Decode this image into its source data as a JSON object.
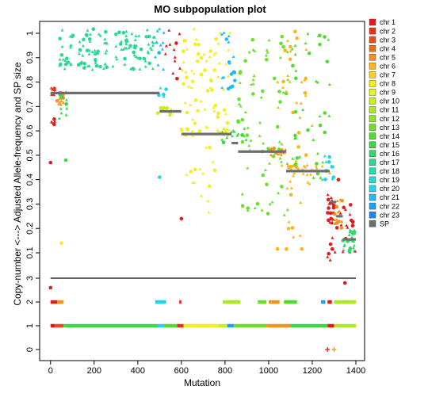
{
  "chart_data": {
    "type": "scatter",
    "title": "MO subpopulation plot",
    "xlabel": "Mutation",
    "ylabel": "Copy-number <---> Adjusted Allele-frequency and SP size",
    "xlim": [
      -50,
      1440
    ],
    "x_ticks": [
      0,
      200,
      400,
      600,
      800,
      1000,
      1200,
      1400
    ],
    "af_axis": {
      "data_range": [
        0,
        1
      ],
      "tick_labels": [
        "0.1",
        "0.2",
        "0.3",
        "0.4",
        "0.5",
        "0.6",
        "0.7",
        "0.8",
        "0.9",
        "1"
      ]
    },
    "cn_axis": {
      "tick_labels": [
        "0",
        "1",
        "2",
        "3"
      ]
    },
    "separator_line_copy_number": 3,
    "legend": {
      "placement": "right",
      "entries": [
        {
          "label": "chr 1",
          "color": "#e41a1c"
        },
        {
          "label": "chr 2",
          "color": "#e8311b"
        },
        {
          "label": "chr 3",
          "color": "#ec4a1a"
        },
        {
          "label": "chr 4",
          "color": "#f06d18"
        },
        {
          "label": "chr 5",
          "color": "#f59218"
        },
        {
          "label": "chr 6",
          "color": "#f9b51a"
        },
        {
          "label": "chr 7",
          "color": "#fcd21c"
        },
        {
          "label": "chr 8",
          "color": "#f5ee1e"
        },
        {
          "label": "chr 9",
          "color": "#e3f51f"
        },
        {
          "label": "chr 10",
          "color": "#c7f020"
        },
        {
          "label": "chr 11",
          "color": "#a9eb22"
        },
        {
          "label": "chr 12",
          "color": "#8ae625"
        },
        {
          "label": "chr 13",
          "color": "#6ae128"
        },
        {
          "label": "chr 14",
          "color": "#4fdc2c"
        },
        {
          "label": "chr 15",
          "color": "#3ad944"
        },
        {
          "label": "chr 16",
          "color": "#30d86c"
        },
        {
          "label": "chr 17",
          "color": "#2ad891"
        },
        {
          "label": "chr 18",
          "color": "#27d9b3"
        },
        {
          "label": "chr 19",
          "color": "#25dad2"
        },
        {
          "label": "chr 20",
          "color": "#21d4ee"
        },
        {
          "label": "chr 21",
          "color": "#1dbdf3"
        },
        {
          "label": "chr 22",
          "color": "#1aa3f5"
        },
        {
          "label": "chr 23",
          "color": "#1b86f0"
        },
        {
          "label": "SP",
          "color": "#6e6e6e"
        }
      ]
    },
    "sp_segments": [
      {
        "x0": 0,
        "x1": 500,
        "y": 0.755
      },
      {
        "x0": 500,
        "x1": 600,
        "y": 0.68
      },
      {
        "x0": 600,
        "x1": 830,
        "y": 0.587
      },
      {
        "x0": 830,
        "x1": 860,
        "y": 0.55
      },
      {
        "x0": 860,
        "x1": 1080,
        "y": 0.515
      },
      {
        "x0": 1080,
        "x1": 1280,
        "y": 0.435
      },
      {
        "x0": 1280,
        "x1": 1310,
        "y": 0.308
      },
      {
        "x0": 1310,
        "x1": 1340,
        "y": 0.25
      },
      {
        "x0": 1340,
        "x1": 1400,
        "y": 0.155
      }
    ],
    "cn_bands": [
      {
        "copy_number": 1,
        "segments": [
          {
            "x0": 0,
            "x1": 20,
            "color": "#e41a1c"
          },
          {
            "x0": 20,
            "x1": 60,
            "color": "#ec4a1a"
          },
          {
            "x0": 60,
            "x1": 490,
            "color": "#3ad944"
          },
          {
            "x0": 490,
            "x1": 520,
            "color": "#21d4ee"
          },
          {
            "x0": 520,
            "x1": 580,
            "color": "#4fdc2c"
          },
          {
            "x0": 580,
            "x1": 610,
            "color": "#e8311b"
          },
          {
            "x0": 610,
            "x1": 770,
            "color": "#f5ee1e"
          },
          {
            "x0": 770,
            "x1": 810,
            "color": "#c7f020"
          },
          {
            "x0": 810,
            "x1": 840,
            "color": "#1aa3f5"
          },
          {
            "x0": 840,
            "x1": 990,
            "color": "#6ae128"
          },
          {
            "x0": 990,
            "x1": 1100,
            "color": "#f59218"
          },
          {
            "x0": 1100,
            "x1": 1270,
            "color": "#3ad944"
          },
          {
            "x0": 1270,
            "x1": 1300,
            "color": "#e41a1c"
          },
          {
            "x0": 1300,
            "x1": 1400,
            "color": "#a9eb22"
          }
        ]
      },
      {
        "copy_number": 2,
        "segments": [
          {
            "x0": 0,
            "x1": 30,
            "color": "#e41a1c"
          },
          {
            "x0": 30,
            "x1": 60,
            "color": "#f59218"
          },
          {
            "x0": 480,
            "x1": 530,
            "color": "#21d4ee"
          },
          {
            "x0": 590,
            "x1": 600,
            "color": "#e8311b"
          },
          {
            "x0": 790,
            "x1": 870,
            "color": "#a9eb22"
          },
          {
            "x0": 950,
            "x1": 990,
            "color": "#6ae128"
          },
          {
            "x0": 1000,
            "x1": 1050,
            "color": "#f59218"
          },
          {
            "x0": 1070,
            "x1": 1130,
            "color": "#4fdc2c"
          },
          {
            "x0": 1240,
            "x1": 1260,
            "color": "#1aa3f5"
          },
          {
            "x0": 1270,
            "x1": 1290,
            "color": "#e41a1c"
          },
          {
            "x0": 1300,
            "x1": 1400,
            "color": "#a9eb22"
          }
        ]
      }
    ],
    "clusters": [
      {
        "x": [
          0,
          20
        ],
        "y": [
          0.74,
          0.78
        ],
        "n": 10,
        "color": "#e8311b"
      },
      {
        "x": [
          0,
          20
        ],
        "y": [
          0.62,
          0.66
        ],
        "n": 6,
        "color": "#e41a1c"
      },
      {
        "x": [
          30,
          60
        ],
        "y": [
          0.7,
          0.78
        ],
        "n": 14,
        "color": "#f59218"
      },
      {
        "x": [
          40,
          80
        ],
        "y": [
          0.6,
          0.76
        ],
        "n": 10,
        "color": "#3ad944"
      },
      {
        "x": [
          40,
          480
        ],
        "y": [
          0.85,
          1.02
        ],
        "n": 130,
        "color": "#2ad891"
      },
      {
        "x": [
          490,
          560
        ],
        "y": [
          0.66,
          0.7
        ],
        "n": 14,
        "color": "#c7f020"
      },
      {
        "x": [
          490,
          530
        ],
        "y": [
          0.74,
          0.78
        ],
        "n": 5,
        "color": "#21d4ee"
      },
      {
        "x": [
          480,
          520
        ],
        "y": [
          0.85,
          1.02
        ],
        "n": 12,
        "color": "#1dbdf3"
      },
      {
        "x": [
          520,
          600
        ],
        "y": [
          0.8,
          1.02
        ],
        "n": 12,
        "color": "#e41a1c"
      },
      {
        "x": [
          600,
          830
        ],
        "y": [
          0.58,
          0.61
        ],
        "n": 18,
        "color": "#e3f51f"
      },
      {
        "x": [
          600,
          830
        ],
        "y": [
          0.6,
          1.02
        ],
        "n": 70,
        "color": "#f5ee1e"
      },
      {
        "x": [
          600,
          760
        ],
        "y": [
          0.25,
          0.55
        ],
        "n": 15,
        "color": "#f5ee1e"
      },
      {
        "x": [
          780,
          900
        ],
        "y": [
          0.55,
          0.62
        ],
        "n": 14,
        "color": "#3ad944"
      },
      {
        "x": [
          780,
          850
        ],
        "y": [
          0.7,
          1.02
        ],
        "n": 20,
        "color": "#1dbdf3"
      },
      {
        "x": [
          860,
          1100
        ],
        "y": [
          0.25,
          1.0
        ],
        "n": 80,
        "color": "#6ae128"
      },
      {
        "x": [
          1000,
          1080
        ],
        "y": [
          0.5,
          0.53
        ],
        "n": 12,
        "color": "#f59218"
      },
      {
        "x": [
          1080,
          1280
        ],
        "y": [
          0.42,
          0.46
        ],
        "n": 20,
        "color": "#f9b51a"
      },
      {
        "x": [
          1040,
          1200
        ],
        "y": [
          0.1,
          1.02
        ],
        "n": 50,
        "color": "#f9b51a"
      },
      {
        "x": [
          1100,
          1280
        ],
        "y": [
          0.4,
          1.02
        ],
        "n": 40,
        "color": "#4fdc2c"
      },
      {
        "x": [
          1240,
          1300
        ],
        "y": [
          0.4,
          0.5
        ],
        "n": 14,
        "color": "#21d4ee"
      },
      {
        "x": [
          1270,
          1300
        ],
        "y": [
          0.22,
          0.34
        ],
        "n": 20,
        "color": "#e41a1c"
      },
      {
        "x": [
          1300,
          1340
        ],
        "y": [
          0.2,
          0.32
        ],
        "n": 16,
        "color": "#f59218"
      },
      {
        "x": [
          1340,
          1400
        ],
        "y": [
          0.1,
          0.2
        ],
        "n": 30,
        "color": "#30d86c"
      },
      {
        "x": [
          1270,
          1400
        ],
        "y": [
          0.05,
          0.3
        ],
        "n": 25,
        "color": "#e41a1c"
      }
    ],
    "outlier_points": [
      {
        "x": 0,
        "y": 0.47,
        "color": "#e41a1c"
      },
      {
        "x": 50,
        "y": 0.14,
        "color": "#f5ee1e"
      },
      {
        "x": 70,
        "y": 0.48,
        "color": "#3ad944"
      },
      {
        "x": 500,
        "y": 0.41,
        "color": "#21d4ee"
      },
      {
        "x": 600,
        "y": 0.24,
        "color": "#e41a1c"
      },
      {
        "x": 1320,
        "y": 0.4,
        "color": "#e41a1c"
      }
    ],
    "cn_outliers": [
      {
        "x": 0,
        "cn": 2.6,
        "color": "#e41a1c"
      },
      {
        "x": 1350,
        "cn": 2.8,
        "color": "#e41a1c"
      },
      {
        "x": 1270,
        "cn": 0.0,
        "color": "#e41a1c"
      },
      {
        "x": 1300,
        "cn": 0.0,
        "color": "#f59218"
      }
    ]
  }
}
